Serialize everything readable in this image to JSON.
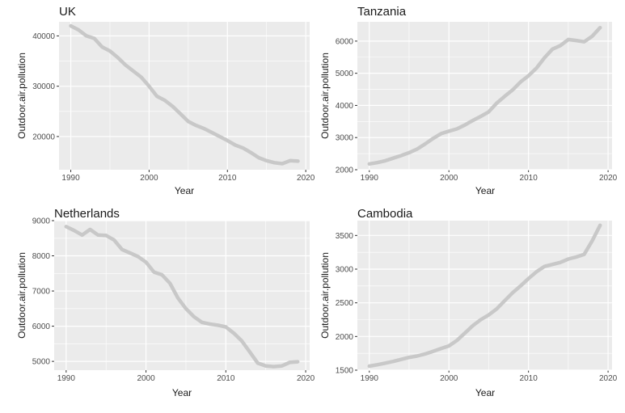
{
  "figure": {
    "background": "#ffffff",
    "panel_color": "#ebebeb",
    "grid_color": "#ffffff",
    "line_color": "#c8c8c8"
  },
  "chart_data": [
    {
      "type": "line",
      "title": "UK",
      "xlabel": "Year",
      "ylabel": "Outdoor.air.pollution",
      "xlim": [
        1988.5,
        2020.5
      ],
      "ylim": [
        13400,
        42800
      ],
      "xticks": [
        1990,
        2000,
        2010,
        2020
      ],
      "yticks": [
        20000,
        30000,
        40000
      ],
      "grid": true,
      "x": [
        1990,
        1991,
        1992,
        1993,
        1994,
        1995,
        1996,
        1997,
        1998,
        1999,
        2000,
        2001,
        2002,
        2003,
        2004,
        2005,
        2006,
        2007,
        2008,
        2009,
        2010,
        2011,
        2012,
        2013,
        2014,
        2015,
        2016,
        2017,
        2018,
        2019
      ],
      "values": [
        42000,
        41200,
        40000,
        39500,
        37800,
        37000,
        35700,
        34200,
        33000,
        31800,
        30000,
        28000,
        27200,
        26000,
        24500,
        23000,
        22200,
        21600,
        20800,
        20000,
        19200,
        18300,
        17700,
        16800,
        15800,
        15200,
        14800,
        14600,
        15200,
        15100
      ]
    },
    {
      "type": "line",
      "title": "Tanzania",
      "xlabel": "Year",
      "ylabel": "Outdoor.air.pollution",
      "xlim": [
        1988.5,
        2020.5
      ],
      "ylim": [
        2000,
        6600
      ],
      "xticks": [
        1990,
        2000,
        2010,
        2020
      ],
      "yticks": [
        2000,
        3000,
        4000,
        5000,
        6000
      ],
      "grid": true,
      "x": [
        1990,
        1991,
        1992,
        1993,
        1994,
        1995,
        1996,
        1997,
        1998,
        1999,
        2000,
        2001,
        2002,
        2003,
        2004,
        2005,
        2006,
        2007,
        2008,
        2009,
        2010,
        2011,
        2012,
        2013,
        2014,
        2015,
        2016,
        2017,
        2018,
        2019
      ],
      "values": [
        2180,
        2220,
        2280,
        2360,
        2440,
        2530,
        2640,
        2800,
        2970,
        3120,
        3200,
        3270,
        3390,
        3530,
        3660,
        3800,
        4070,
        4280,
        4480,
        4730,
        4920,
        5160,
        5480,
        5750,
        5860,
        6050,
        6020,
        5980,
        6150,
        6420
      ]
    },
    {
      "type": "line",
      "title": "Netherlands",
      "xlabel": "Year",
      "ylabel": "Outdoor.air.pollution",
      "xlim": [
        1988.5,
        2020.5
      ],
      "ylim": [
        4750,
        9000
      ],
      "xticks": [
        1990,
        2000,
        2010,
        2020
      ],
      "yticks": [
        5000,
        6000,
        7000,
        8000,
        9000
      ],
      "grid": true,
      "x": [
        1990,
        1991,
        1992,
        1993,
        1994,
        1995,
        1996,
        1997,
        1998,
        1999,
        2000,
        2001,
        2002,
        2003,
        2004,
        2005,
        2006,
        2007,
        2008,
        2009,
        2010,
        2011,
        2012,
        2013,
        2014,
        2015,
        2016,
        2017,
        2018,
        2019
      ],
      "values": [
        8830,
        8720,
        8590,
        8750,
        8590,
        8580,
        8450,
        8180,
        8080,
        7980,
        7820,
        7540,
        7460,
        7220,
        6800,
        6500,
        6270,
        6110,
        6060,
        6030,
        5980,
        5800,
        5580,
        5270,
        4950,
        4870,
        4850,
        4870,
        4970,
        4990
      ]
    },
    {
      "type": "line",
      "title": "Cambodia",
      "xlabel": "Year",
      "ylabel": "Outdoor.air.pollution",
      "xlim": [
        1988.5,
        2020.5
      ],
      "ylim": [
        1500,
        3720
      ],
      "xticks": [
        1990,
        2000,
        2010,
        2020
      ],
      "yticks": [
        1500,
        2000,
        2500,
        3000,
        3500
      ],
      "grid": true,
      "x": [
        1990,
        1991,
        1992,
        1993,
        1994,
        1995,
        1996,
        1997,
        1998,
        1999,
        2000,
        2001,
        2002,
        2003,
        2004,
        2005,
        2006,
        2007,
        2008,
        2009,
        2010,
        2011,
        2012,
        2013,
        2014,
        2015,
        2016,
        2017,
        2018,
        2019
      ],
      "values": [
        1560,
        1580,
        1605,
        1630,
        1660,
        1690,
        1710,
        1740,
        1780,
        1820,
        1860,
        1940,
        2050,
        2160,
        2250,
        2320,
        2410,
        2530,
        2650,
        2750,
        2860,
        2960,
        3040,
        3070,
        3100,
        3150,
        3180,
        3220,
        3420,
        3650
      ]
    }
  ]
}
